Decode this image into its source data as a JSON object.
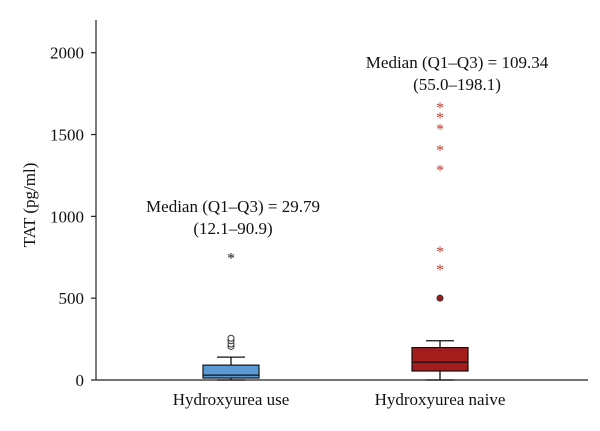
{
  "chart_data": {
    "type": "box",
    "ylabel": "TAT (pg/ml)",
    "xlabel": "",
    "ylim": [
      0,
      2200
    ],
    "yticks": [
      0,
      500,
      1000,
      1500,
      2000
    ],
    "grid": false,
    "categories": [
      "Hydroxyurea use",
      "Hydroxyurea naive"
    ],
    "boxes": [
      {
        "name": "Hydroxyurea use",
        "color": "#5b9bd5",
        "median": 29.79,
        "q1": 12.1,
        "q3": 90.9,
        "whisker_low": 0,
        "whisker_high": 140,
        "outliers_circle": [
          205,
          220,
          240,
          255
        ],
        "outliers_star": [
          760
        ]
      },
      {
        "name": "Hydroxyurea naive",
        "color": "#a51c1c",
        "median": 109.34,
        "q1": 55.0,
        "q3": 198.1,
        "whisker_low": 0,
        "whisker_high": 240,
        "outliers_circle": [
          500
        ],
        "outliers_star": [
          690,
          800,
          1300,
          1420,
          1550,
          1620,
          1680
        ]
      }
    ],
    "annotations": [
      {
        "line1": "Median (Q1–Q3) = 29.79",
        "line2": "(12.1–90.9)"
      },
      {
        "line1": "Median (Q1–Q3) = 109.34",
        "line2": "(55.0–198.1)"
      }
    ]
  }
}
